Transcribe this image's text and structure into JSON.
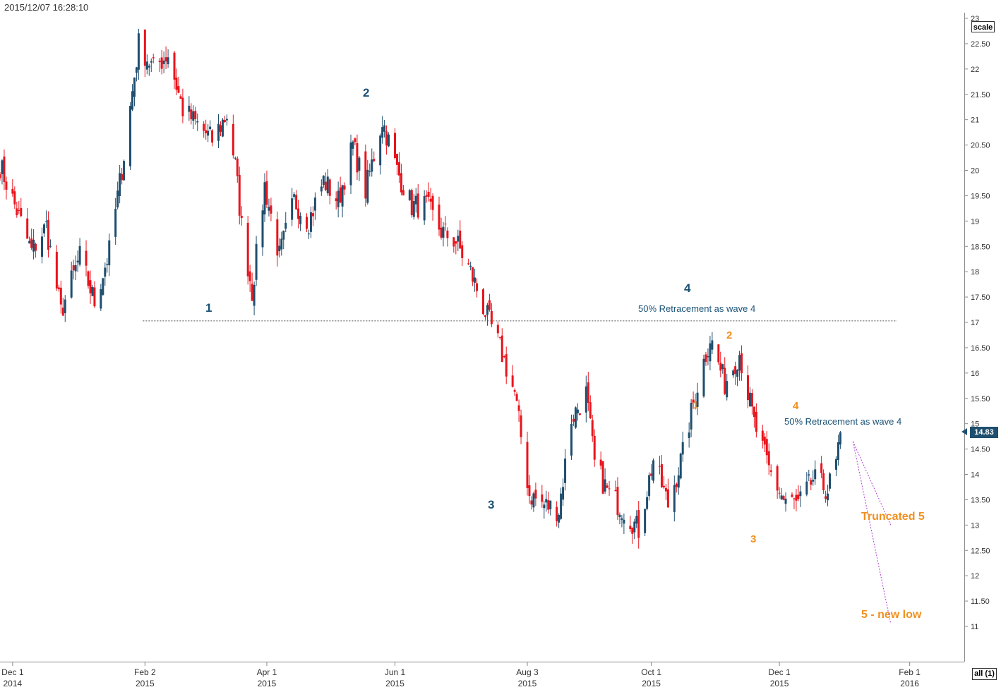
{
  "header": {
    "timestamp": "2015/12/07 16:28:10"
  },
  "controls": {
    "scale_label": "scale",
    "all_label": "all (1)"
  },
  "last_price": {
    "label": "14.83",
    "value": 14.83
  },
  "colors": {
    "up": "#1f4e6e",
    "down": "#e8141c",
    "grid": "#cfd8e0",
    "axis": "#888888",
    "projection": "#b040d0"
  },
  "chart_data": {
    "type": "candlestick",
    "title": "",
    "xlabel": "",
    "ylabel": "",
    "ylim": [
      10.5,
      23
    ],
    "yticks": [
      {
        "value": 23,
        "label": "23"
      },
      {
        "value": 22.5,
        "label": "22.50"
      },
      {
        "value": 22,
        "label": "22"
      },
      {
        "value": 21.5,
        "label": "21.50"
      },
      {
        "value": 21,
        "label": "21"
      },
      {
        "value": 20.5,
        "label": "20.50"
      },
      {
        "value": 20,
        "label": "20"
      },
      {
        "value": 19.5,
        "label": "19.50"
      },
      {
        "value": 19,
        "label": "19"
      },
      {
        "value": 18.5,
        "label": "18.50"
      },
      {
        "value": 18,
        "label": "18"
      },
      {
        "value": 17.5,
        "label": "17.50"
      },
      {
        "value": 17,
        "label": "17"
      },
      {
        "value": 16.5,
        "label": "16.50"
      },
      {
        "value": 16,
        "label": "16"
      },
      {
        "value": 15.5,
        "label": "15.50"
      },
      {
        "value": 15,
        "label": "15"
      },
      {
        "value": 14.5,
        "label": "14.50"
      },
      {
        "value": 14,
        "label": "14"
      },
      {
        "value": 13.5,
        "label": "13.50"
      },
      {
        "value": 13,
        "label": "13"
      },
      {
        "value": 12.5,
        "label": "12.50"
      },
      {
        "value": 12,
        "label": "12"
      },
      {
        "value": 11.5,
        "label": "11.50"
      },
      {
        "value": 11,
        "label": "11"
      }
    ],
    "xticks": [
      {
        "month": "Dec 1",
        "year": "2014",
        "date": "2014-12-01"
      },
      {
        "month": "Feb 2",
        "year": "2015",
        "date": "2015-02-02"
      },
      {
        "month": "Apr 1",
        "year": "2015",
        "date": "2015-04-01"
      },
      {
        "month": "Jun 1",
        "year": "2015",
        "date": "2015-06-01"
      },
      {
        "month": "Aug 3",
        "year": "2015",
        "date": "2015-08-03"
      },
      {
        "month": "Oct 1",
        "year": "2015",
        "date": "2015-10-01"
      },
      {
        "month": "Dec 1",
        "year": "2015",
        "date": "2015-12-01"
      },
      {
        "month": "Feb 1",
        "year": "2016",
        "date": "2016-02-01"
      }
    ],
    "xrange": [
      "2014-11-25",
      "2016-02-27"
    ],
    "price_path": [
      [
        "2014-11-25",
        20.1
      ],
      [
        "2014-12-03",
        19.2
      ],
      [
        "2014-12-10",
        18.4
      ],
      [
        "2014-12-17",
        18.9
      ],
      [
        "2014-12-24",
        17.2
      ],
      [
        "2015-01-02",
        18.3
      ],
      [
        "2015-01-09",
        17.4
      ],
      [
        "2015-01-16",
        18.4
      ],
      [
        "2015-01-23",
        20.3
      ],
      [
        "2015-01-30",
        22.5
      ],
      [
        "2015-02-06",
        22.0
      ],
      [
        "2015-02-13",
        22.3
      ],
      [
        "2015-02-20",
        21.2
      ],
      [
        "2015-02-27",
        20.9
      ],
      [
        "2015-03-06",
        20.6
      ],
      [
        "2015-03-13",
        21.1
      ],
      [
        "2015-03-17",
        20.1
      ],
      [
        "2015-03-20",
        18.9
      ],
      [
        "2015-03-25",
        17.6
      ],
      [
        "2015-03-31",
        19.7
      ],
      [
        "2015-04-07",
        18.3
      ],
      [
        "2015-04-14",
        19.4
      ],
      [
        "2015-04-21",
        19.0
      ],
      [
        "2015-04-28",
        19.8
      ],
      [
        "2015-05-05",
        19.4
      ],
      [
        "2015-05-12",
        20.5
      ],
      [
        "2015-05-18",
        19.6
      ],
      [
        "2015-05-26",
        21.0
      ],
      [
        "2015-06-02",
        20.0
      ],
      [
        "2015-06-09",
        19.3
      ],
      [
        "2015-06-16",
        19.3
      ],
      [
        "2015-06-23",
        18.8
      ],
      [
        "2015-06-30",
        18.6
      ],
      [
        "2015-07-07",
        18.0
      ],
      [
        "2015-07-14",
        17.2
      ],
      [
        "2015-07-21",
        16.5
      ],
      [
        "2015-07-28",
        15.6
      ],
      [
        "2015-08-04",
        13.6
      ],
      [
        "2015-08-11",
        13.4
      ],
      [
        "2015-08-18",
        13.3
      ],
      [
        "2015-08-24",
        15.1
      ],
      [
        "2015-08-31",
        15.6
      ],
      [
        "2015-09-04",
        14.2
      ],
      [
        "2015-09-11",
        13.6
      ],
      [
        "2015-09-18",
        13.3
      ],
      [
        "2015-09-25",
        12.9
      ],
      [
        "2015-10-02",
        14.3
      ],
      [
        "2015-10-09",
        13.4
      ],
      [
        "2015-10-16",
        14.4
      ],
      [
        "2015-10-22",
        15.6
      ],
      [
        "2015-10-29",
        16.7
      ],
      [
        "2015-11-05",
        15.8
      ],
      [
        "2015-11-12",
        16.4
      ],
      [
        "2015-11-19",
        15.0
      ],
      [
        "2015-11-26",
        14.1
      ],
      [
        "2015-12-03",
        13.5
      ],
      [
        "2015-12-10",
        13.4
      ],
      [
        "2015-12-17",
        13.9
      ],
      [
        "2015-12-24",
        13.7
      ],
      [
        "2015-12-28",
        14.2
      ],
      [
        "2015-12-30",
        14.83
      ]
    ],
    "reference_line": {
      "value": 17.03,
      "from": "2015-02-01",
      "to": "2016-01-26"
    },
    "projections": [
      {
        "from": [
          "2016-01-05",
          14.65
        ],
        "to": [
          "2016-01-23",
          13.0
        ]
      },
      {
        "from": [
          "2016-01-05",
          14.65
        ],
        "to": [
          "2016-01-23",
          11.05
        ]
      }
    ],
    "annotations": {
      "wave1": "1",
      "wave2": "2",
      "wave3": "3",
      "wave4": "4",
      "sub1": "1",
      "sub2": "2",
      "sub3": "3",
      "sub4": "4",
      "retracement_1": "50% Retracement as wave 4",
      "retracement_2": "50% Retracement as wave 4",
      "truncated": "Truncated 5",
      "new_low": "5 - new low"
    }
  }
}
